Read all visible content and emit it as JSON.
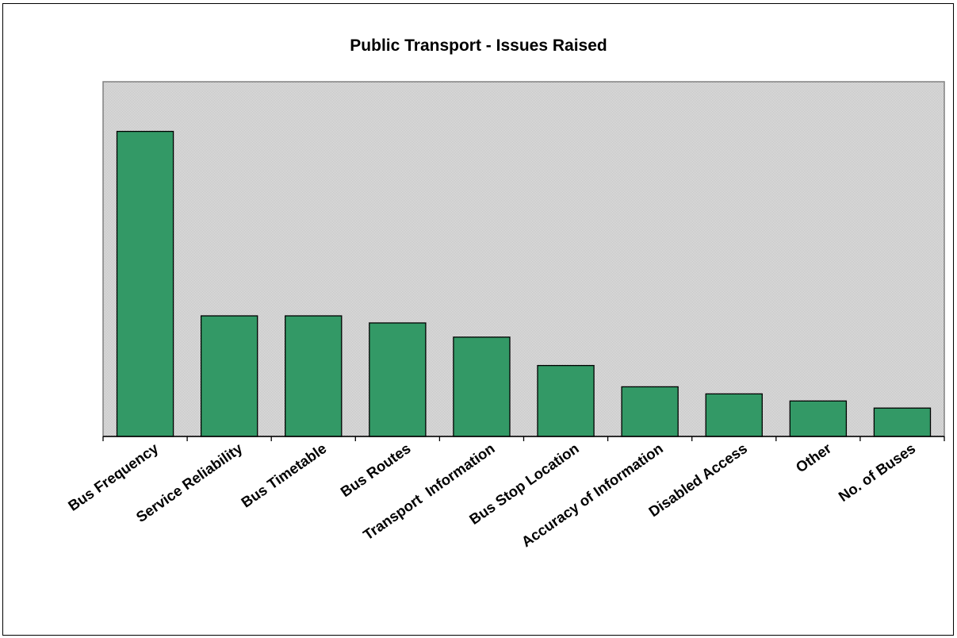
{
  "chart_data": {
    "type": "bar",
    "title": "Public Transport - Issues Raised",
    "xlabel": "",
    "ylabel": "",
    "categories": [
      "Bus Frequency",
      "Service Reliability",
      "Bus Timetable",
      "Bus Routes",
      "Transport  Information",
      "Bus Stop Location",
      "Accuracy of Information",
      "Disabled Access",
      "Other",
      "No. of Buses"
    ],
    "values": [
      43,
      17,
      17,
      16,
      14,
      10,
      7,
      6,
      5,
      4
    ],
    "ylim": [
      0,
      50
    ],
    "grid": false,
    "legend": "none",
    "y_tick_labels_shown": false,
    "colors": {
      "bar": "#339966",
      "bar_stroke": "#000000",
      "plot_background": "#d9d9d9",
      "axis": "#000000"
    }
  }
}
